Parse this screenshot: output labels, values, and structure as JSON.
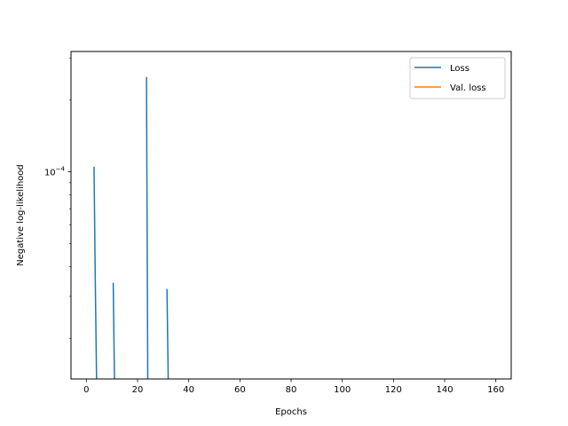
{
  "chart_data": {
    "type": "line",
    "title": "",
    "xlabel": "Epochs",
    "ylabel": "Negative log-likelihood",
    "xlim": [
      -6,
      166
    ],
    "x_ticks": [
      0,
      20,
      40,
      60,
      80,
      100,
      120,
      140,
      160
    ],
    "yscale": "log",
    "ylim": [
      1.35e-05,
      0.00032
    ],
    "y_major_ticks": [
      {
        "value": 0.0001,
        "label_base": "10",
        "label_exp": "−4"
      }
    ],
    "grid": false,
    "legend": {
      "placement": "top-right",
      "entries": [
        "Loss",
        "Val. loss"
      ]
    },
    "series": [
      {
        "name": "Loss",
        "color": "#1f77b4",
        "x": [
          3,
          3.5,
          4,
          10.5,
          11,
          23.5,
          24,
          31.5,
          32
        ],
        "y": [
          0.000105,
          3.42e-05,
          1.31e-05,
          3.42e-05,
          1.31e-05,
          0.00025,
          1.31e-05,
          3.22e-05,
          1.31e-05
        ],
        "segments": [
          {
            "x": [
              3,
              3.5,
              4
            ],
            "y": [
              0.000105,
              3.42e-05,
              1.31e-05
            ]
          },
          {
            "x": [
              10.5,
              11
            ],
            "y": [
              3.42e-05,
              1.31e-05
            ]
          },
          {
            "x": [
              23.5,
              24
            ],
            "y": [
              0.00025,
              1.31e-05
            ]
          },
          {
            "x": [
              31.5,
              32
            ],
            "y": [
              3.22e-05,
              1.31e-05
            ]
          }
        ]
      },
      {
        "name": "Val. loss",
        "color": "#ff7f0e",
        "x": [],
        "y": [],
        "segments": []
      }
    ]
  }
}
